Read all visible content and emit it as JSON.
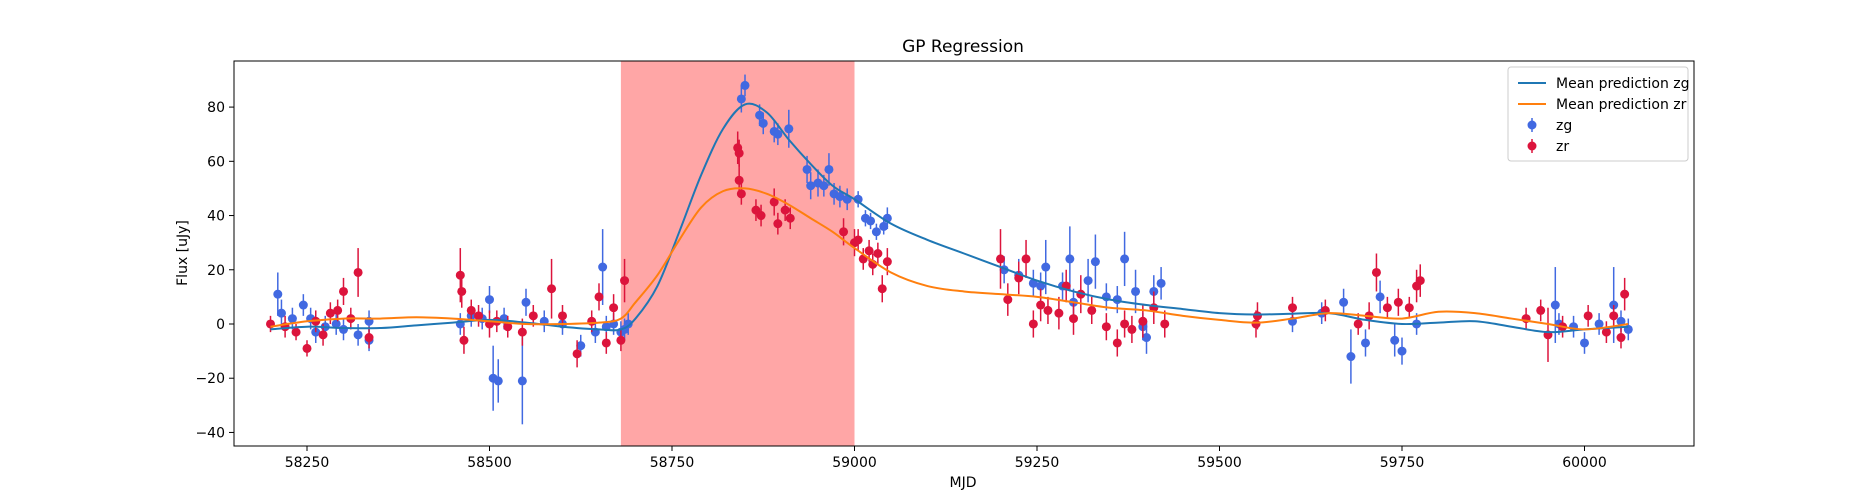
{
  "chart_data": {
    "type": "scatter",
    "title": "GP Regression",
    "xlabel": "MJD",
    "ylabel": "Flux [uJy]",
    "xlim": [
      58150,
      60150
    ],
    "ylim": [
      -45,
      97
    ],
    "xticks": [
      58250,
      58500,
      58750,
      59000,
      59250,
      59500,
      59750,
      60000
    ],
    "yticks": [
      -40,
      -20,
      0,
      20,
      40,
      60,
      80
    ],
    "xtick_labels": [
      "58250",
      "58500",
      "58750",
      "59000",
      "59250",
      "59500",
      "59750",
      "60000"
    ],
    "ytick_labels": [
      "−40",
      "−20",
      "0",
      "20",
      "40",
      "60",
      "80"
    ],
    "grid": false,
    "legend_position": "top-right",
    "highlight_span": {
      "x_start": 58680,
      "x_end": 59000,
      "color": "#ff5c5c"
    },
    "lines": [
      {
        "name": "Mean prediction zg",
        "color": "#1f77b4",
        "x": [
          58200,
          58250,
          58300,
          58350,
          58400,
          58450,
          58500,
          58550,
          58600,
          58650,
          58680,
          58700,
          58730,
          58760,
          58790,
          58820,
          58850,
          58880,
          58910,
          58940,
          58970,
          59000,
          59050,
          59100,
          59150,
          59200,
          59250,
          59300,
          59350,
          59400,
          59450,
          59500,
          59550,
          59600,
          59650,
          59700,
          59750,
          59800,
          59850,
          59900,
          59950,
          60000,
          60060
        ],
        "y": [
          -2,
          -1,
          -1.5,
          -1.5,
          -0.5,
          0.5,
          1.5,
          0.5,
          -1,
          -2,
          -2,
          2,
          14,
          34,
          55,
          72,
          81,
          78,
          68,
          59,
          51,
          46,
          37,
          31,
          26,
          21,
          16,
          12,
          9,
          7,
          5.5,
          4,
          3.5,
          3.8,
          4,
          1.5,
          0,
          0.5,
          1,
          -1,
          -3,
          -2,
          -1
        ]
      },
      {
        "name": "Mean prediction zr",
        "color": "#ff7f0e",
        "x": [
          58200,
          58250,
          58300,
          58350,
          58400,
          58450,
          58500,
          58550,
          58600,
          58650,
          58680,
          58700,
          58730,
          58760,
          58790,
          58820,
          58850,
          58880,
          58910,
          58940,
          58970,
          59000,
          59050,
          59100,
          59150,
          59200,
          59250,
          59300,
          59350,
          59400,
          59450,
          59500,
          59550,
          59600,
          59650,
          59700,
          59750,
          59800,
          59850,
          59900,
          59950,
          60000,
          60060
        ],
        "y": [
          -1,
          1,
          2,
          2,
          2.5,
          2,
          1,
          0,
          0,
          0.5,
          2,
          8,
          18,
          31,
          43,
          49,
          50,
          48,
          44,
          39,
          34,
          28,
          19,
          14,
          12,
          11,
          10,
          8,
          6,
          5,
          3,
          1.5,
          0.5,
          2,
          4,
          3,
          2,
          4.5,
          4,
          2,
          0,
          -2,
          0
        ]
      }
    ],
    "series": [
      {
        "name": "zg",
        "color": "#4169e1",
        "points": [
          [
            58210,
            11,
            8
          ],
          [
            58215,
            4,
            5
          ],
          [
            58230,
            2,
            4
          ],
          [
            58245,
            7,
            4
          ],
          [
            58255,
            2,
            4
          ],
          [
            58262,
            -3,
            4
          ],
          [
            58275,
            -1,
            4
          ],
          [
            58290,
            0,
            4
          ],
          [
            58300,
            -2,
            4
          ],
          [
            58320,
            -4,
            4
          ],
          [
            58335,
            1,
            4
          ],
          [
            58335,
            -6,
            4
          ],
          [
            58460,
            0,
            4
          ],
          [
            58475,
            3,
            4
          ],
          [
            58490,
            2,
            4
          ],
          [
            58500,
            9,
            5
          ],
          [
            58505,
            -20,
            12
          ],
          [
            58512,
            -21,
            8
          ],
          [
            58520,
            2,
            4
          ],
          [
            58545,
            -21,
            16
          ],
          [
            58550,
            8,
            5
          ],
          [
            58575,
            1,
            4
          ],
          [
            58600,
            0,
            4
          ],
          [
            58625,
            -8,
            4
          ],
          [
            58645,
            -3,
            4
          ],
          [
            58655,
            21,
            14
          ],
          [
            58660,
            -1,
            4
          ],
          [
            58670,
            0,
            4
          ],
          [
            58680,
            -3,
            4
          ],
          [
            58685,
            -2,
            4
          ],
          [
            58690,
            0,
            4
          ],
          [
            58845,
            83,
            5
          ],
          [
            58850,
            88,
            4
          ],
          [
            58870,
            77,
            4
          ],
          [
            58875,
            74,
            4
          ],
          [
            58890,
            71,
            4
          ],
          [
            58895,
            70,
            4
          ],
          [
            58910,
            72,
            7
          ],
          [
            58935,
            57,
            5
          ],
          [
            58940,
            51,
            5
          ],
          [
            58950,
            52,
            5
          ],
          [
            58958,
            51,
            4
          ],
          [
            58965,
            57,
            6
          ],
          [
            58972,
            48,
            4
          ],
          [
            58980,
            47,
            4
          ],
          [
            58990,
            46,
            4
          ],
          [
            59005,
            46,
            3
          ],
          [
            59015,
            39,
            3
          ],
          [
            59022,
            38,
            3
          ],
          [
            59030,
            34,
            3
          ],
          [
            59040,
            36,
            3
          ],
          [
            59045,
            39,
            4
          ],
          [
            59205,
            20,
            5
          ],
          [
            59225,
            18,
            6
          ],
          [
            59245,
            15,
            5
          ],
          [
            59255,
            14,
            5
          ],
          [
            59262,
            21,
            10
          ],
          [
            59285,
            14,
            5
          ],
          [
            59295,
            24,
            12
          ],
          [
            59300,
            8,
            5
          ],
          [
            59320,
            16,
            8
          ],
          [
            59330,
            23,
            10
          ],
          [
            59345,
            10,
            5
          ],
          [
            59360,
            9,
            5
          ],
          [
            59370,
            24,
            10
          ],
          [
            59385,
            12,
            8
          ],
          [
            59395,
            -1,
            5
          ],
          [
            59400,
            -5,
            6
          ],
          [
            59410,
            12,
            6
          ],
          [
            59420,
            15,
            6
          ],
          [
            59600,
            1,
            4
          ],
          [
            59640,
            4,
            4
          ],
          [
            59670,
            8,
            5
          ],
          [
            59680,
            -12,
            10
          ],
          [
            59700,
            -7,
            5
          ],
          [
            59720,
            10,
            6
          ],
          [
            59740,
            -6,
            6
          ],
          [
            59750,
            -10,
            5
          ],
          [
            59770,
            0,
            4
          ],
          [
            59960,
            7,
            14
          ],
          [
            59965,
            0,
            4
          ],
          [
            59985,
            -1,
            4
          ],
          [
            60000,
            -7,
            4
          ],
          [
            60020,
            0,
            4
          ],
          [
            60040,
            7,
            14
          ],
          [
            60050,
            1,
            4
          ],
          [
            60060,
            -2,
            4
          ]
        ]
      },
      {
        "name": "zr",
        "color": "#dc143c",
        "points": [
          [
            58200,
            0,
            3
          ],
          [
            58220,
            -1,
            4
          ],
          [
            58235,
            -3,
            3
          ],
          [
            58250,
            -9,
            3
          ],
          [
            58262,
            1,
            4
          ],
          [
            58272,
            -4,
            4
          ],
          [
            58282,
            4,
            4
          ],
          [
            58292,
            5,
            4
          ],
          [
            58300,
            12,
            5
          ],
          [
            58310,
            2,
            4
          ],
          [
            58320,
            19,
            9
          ],
          [
            58335,
            -5,
            4
          ],
          [
            58460,
            18,
            10
          ],
          [
            58462,
            12,
            6
          ],
          [
            58465,
            -6,
            5
          ],
          [
            58475,
            5,
            4
          ],
          [
            58485,
            3,
            4
          ],
          [
            58500,
            0,
            5
          ],
          [
            58510,
            1,
            4
          ],
          [
            58525,
            -1,
            4
          ],
          [
            58545,
            -3,
            5
          ],
          [
            58560,
            3,
            4
          ],
          [
            58585,
            13,
            11
          ],
          [
            58600,
            3,
            4
          ],
          [
            58620,
            -11,
            5
          ],
          [
            58640,
            1,
            4
          ],
          [
            58650,
            10,
            5
          ],
          [
            58660,
            -7,
            4
          ],
          [
            58670,
            6,
            5
          ],
          [
            58680,
            -6,
            4
          ],
          [
            58685,
            16,
            8
          ],
          [
            58840,
            65,
            6
          ],
          [
            58842,
            63,
            5
          ],
          [
            58842,
            53,
            6
          ],
          [
            58845,
            48,
            4
          ],
          [
            58865,
            42,
            4
          ],
          [
            58872,
            40,
            4
          ],
          [
            58890,
            45,
            5
          ],
          [
            58895,
            37,
            4
          ],
          [
            58905,
            42,
            4
          ],
          [
            58912,
            39,
            4
          ],
          [
            58985,
            34,
            5
          ],
          [
            59000,
            30,
            5
          ],
          [
            59005,
            31,
            4
          ],
          [
            59012,
            24,
            4
          ],
          [
            59020,
            27,
            4
          ],
          [
            59025,
            22,
            4
          ],
          [
            59032,
            26,
            4
          ],
          [
            59038,
            13,
            5
          ],
          [
            59045,
            23,
            5
          ],
          [
            59200,
            24,
            11
          ],
          [
            59210,
            9,
            6
          ],
          [
            59225,
            17,
            6
          ],
          [
            59235,
            24,
            7
          ],
          [
            59245,
            0,
            5
          ],
          [
            59255,
            7,
            6
          ],
          [
            59265,
            5,
            5
          ],
          [
            59280,
            4,
            6
          ],
          [
            59290,
            14,
            6
          ],
          [
            59300,
            2,
            6
          ],
          [
            59310,
            11,
            7
          ],
          [
            59325,
            5,
            5
          ],
          [
            59345,
            -1,
            5
          ],
          [
            59360,
            -7,
            5
          ],
          [
            59370,
            0,
            5
          ],
          [
            59380,
            -2,
            5
          ],
          [
            59395,
            1,
            6
          ],
          [
            59410,
            6,
            6
          ],
          [
            59425,
            0,
            5
          ],
          [
            59550,
            0,
            5
          ],
          [
            59552,
            3,
            5
          ],
          [
            59600,
            6,
            4
          ],
          [
            59645,
            5,
            4
          ],
          [
            59690,
            0,
            4
          ],
          [
            59705,
            3,
            5
          ],
          [
            59715,
            19,
            7
          ],
          [
            59730,
            6,
            4
          ],
          [
            59745,
            8,
            5
          ],
          [
            59760,
            6,
            4
          ],
          [
            59770,
            14,
            6
          ],
          [
            59775,
            16,
            6
          ],
          [
            59920,
            2,
            4
          ],
          [
            59940,
            5,
            4
          ],
          [
            59950,
            -4,
            10
          ],
          [
            59970,
            -1,
            4
          ],
          [
            60005,
            3,
            4
          ],
          [
            60030,
            -3,
            4
          ],
          [
            60040,
            3,
            4
          ],
          [
            60050,
            -5,
            4
          ],
          [
            60055,
            11,
            6
          ]
        ]
      }
    ]
  }
}
